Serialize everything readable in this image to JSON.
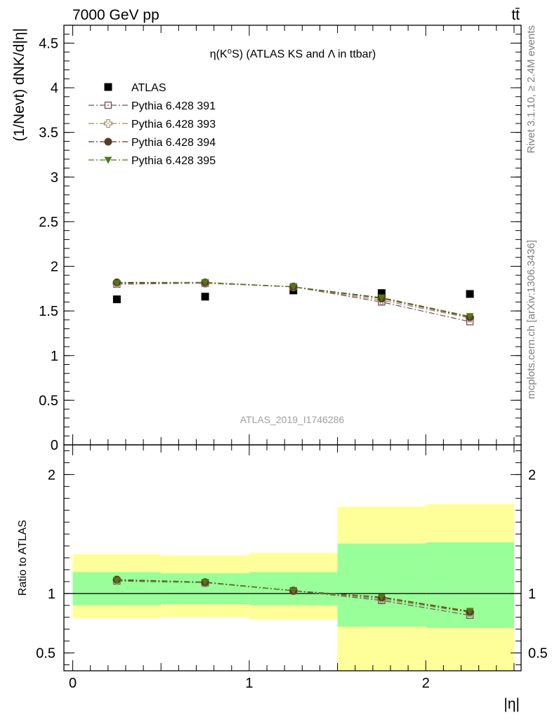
{
  "header": {
    "energy_label": "7000 GeV pp",
    "process_label": "tt̄"
  },
  "side_labels": {
    "rivet": "Rivet 3.1.10, ≥ 2.4M events",
    "mcplots": "mcplots.cern.ch [arXiv:1306.3436]"
  },
  "chart_data": [
    {
      "type": "scatter",
      "title": "η(K⁰S) (ATLAS KS and Λ in ttbar)",
      "ylabel": "(1/Nevt) dNK/d|η|",
      "watermark": "ATLAS_2019_I1746286",
      "xlim": [
        -0.05,
        2.54
      ],
      "ylim": [
        0,
        4.7
      ],
      "y_ticks": [
        0,
        0.5,
        1,
        1.5,
        2,
        2.5,
        3,
        3.5,
        4,
        4.5
      ],
      "y_tick_labels": [
        "0",
        "0.5",
        "1",
        "1.5",
        "2",
        "2.5",
        "3",
        "3.5",
        "4",
        "4.5"
      ],
      "x_bin_edges": [
        0,
        0.5,
        1,
        1.5,
        2,
        2.5
      ],
      "x": [
        0.25,
        0.75,
        1.25,
        1.75,
        2.25
      ],
      "series": [
        {
          "name": "ATLAS",
          "color": "#000000",
          "marker": "square-filled",
          "values": [
            1.63,
            1.66,
            1.73,
            1.7,
            1.69
          ]
        },
        {
          "name": "Pythia 6.428 391",
          "color": "#7b4a60",
          "marker": "square-open",
          "values": [
            1.8,
            1.81,
            1.77,
            1.6,
            1.38
          ]
        },
        {
          "name": "Pythia 6.428 393",
          "color": "#9a8a60",
          "marker": "cross-open",
          "values": [
            1.81,
            1.81,
            1.77,
            1.62,
            1.42
          ]
        },
        {
          "name": "Pythia 6.428 394",
          "color": "#5c3a22",
          "marker": "circle-filled",
          "values": [
            1.82,
            1.82,
            1.77,
            1.64,
            1.43
          ]
        },
        {
          "name": "Pythia 6.428 395",
          "color": "#4e7a1a",
          "marker": "triangle-down-filled",
          "values": [
            1.81,
            1.82,
            1.77,
            1.65,
            1.44
          ]
        }
      ]
    },
    {
      "type": "scatter",
      "ylabel": "Ratio to ATLAS",
      "xlabel": "|η|",
      "xlim": [
        -0.05,
        2.54
      ],
      "ylim": [
        0.35,
        2.25
      ],
      "x_ticks": [
        0,
        1,
        2
      ],
      "x_tick_labels": [
        "0",
        "1",
        "2"
      ],
      "y_ticks": [
        0.5,
        1,
        2
      ],
      "y_tick_labels": [
        "0.5",
        "1",
        "2"
      ],
      "reference_line": 1,
      "bands": {
        "x_bin_edges": [
          0,
          0.5,
          1,
          1.5,
          2,
          2.5
        ],
        "total_uncertainty": {
          "color": "#ffff99",
          "low": [
            0.79,
            0.8,
            0.78,
            0.35,
            0.35
          ],
          "high": [
            1.33,
            1.32,
            1.34,
            1.73,
            1.75
          ]
        },
        "stat_uncertainty": {
          "color": "#99ff99",
          "low": [
            0.9,
            0.91,
            0.9,
            0.72,
            0.71
          ],
          "high": [
            1.18,
            1.17,
            1.18,
            1.42,
            1.43
          ]
        }
      },
      "x": [
        0.25,
        0.75,
        1.25,
        1.75,
        2.25
      ],
      "series": [
        {
          "name": "Pythia 6.428 391",
          "color": "#7b4a60",
          "marker": "square-open",
          "values": [
            1.105,
            1.09,
            1.023,
            0.941,
            0.817
          ]
        },
        {
          "name": "Pythia 6.428 393",
          "color": "#9a8a60",
          "marker": "cross-open",
          "values": [
            1.11,
            1.09,
            1.023,
            0.953,
            0.84
          ]
        },
        {
          "name": "Pythia 6.428 394",
          "color": "#5c3a22",
          "marker": "circle-filled",
          "values": [
            1.117,
            1.096,
            1.023,
            0.965,
            0.846
          ]
        },
        {
          "name": "Pythia 6.428 395",
          "color": "#4e7a1a",
          "marker": "triangle-down-filled",
          "values": [
            1.11,
            1.096,
            1.023,
            0.971,
            0.852
          ]
        }
      ]
    }
  ]
}
